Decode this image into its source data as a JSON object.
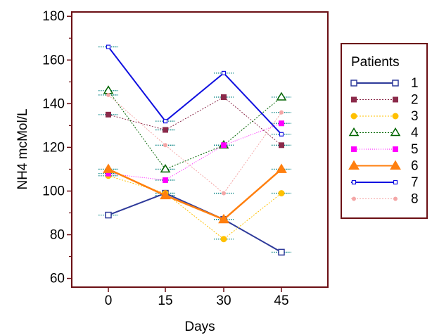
{
  "chart_data": {
    "type": "line",
    "xlabel": "Days",
    "ylabel": "NH4 mcMol/L",
    "x": [
      0,
      15,
      30,
      45
    ],
    "xticks": [
      "0",
      "15",
      "30",
      "45"
    ],
    "ylim": [
      56,
      182
    ],
    "yticks": [
      "60",
      "80",
      "100",
      "120",
      "140",
      "160",
      "180"
    ],
    "grid": false,
    "legend_title": "Patients",
    "legend_position": "right",
    "colors": {
      "frame": "#6b0f14",
      "error_bar": "#008080"
    },
    "series": [
      {
        "name": "1",
        "color": "#2e3a9a",
        "dash": "solid",
        "width": 2.0,
        "marker": "open-square",
        "values": [
          89,
          99,
          87,
          72
        ]
      },
      {
        "name": "2",
        "color": "#8b2a4a",
        "dash": "2,2",
        "width": 1.0,
        "marker": "filled-square",
        "values": [
          135,
          128,
          143,
          121
        ]
      },
      {
        "name": "3",
        "color": "#ffc000",
        "dash": "2,2",
        "width": 1.0,
        "marker": "filled-circle",
        "values": [
          107,
          99,
          78,
          99
        ]
      },
      {
        "name": "4",
        "color": "#006400",
        "dash": "2,2",
        "width": 1.0,
        "marker": "open-triangle",
        "values": [
          146,
          110,
          121,
          143
        ]
      },
      {
        "name": "5",
        "color": "#ff00ff",
        "dash": "1,2",
        "width": 1.0,
        "marker": "filled-square",
        "values": [
          108,
          105,
          121,
          131
        ]
      },
      {
        "name": "6",
        "color": "#ff7f0e",
        "dash": "solid",
        "width": 2.5,
        "marker": "filled-triangle",
        "values": [
          110,
          98,
          87,
          110
        ]
      },
      {
        "name": "7",
        "color": "#1010e0",
        "dash": "solid",
        "width": 2.0,
        "marker": "open-square-small",
        "values": [
          166,
          132,
          154,
          126
        ]
      },
      {
        "name": "8",
        "color": "#f4a6a6",
        "dash": "2,2",
        "width": 1.0,
        "marker": "filled-circle-small",
        "values": [
          144,
          121,
          99,
          136
        ]
      }
    ]
  }
}
